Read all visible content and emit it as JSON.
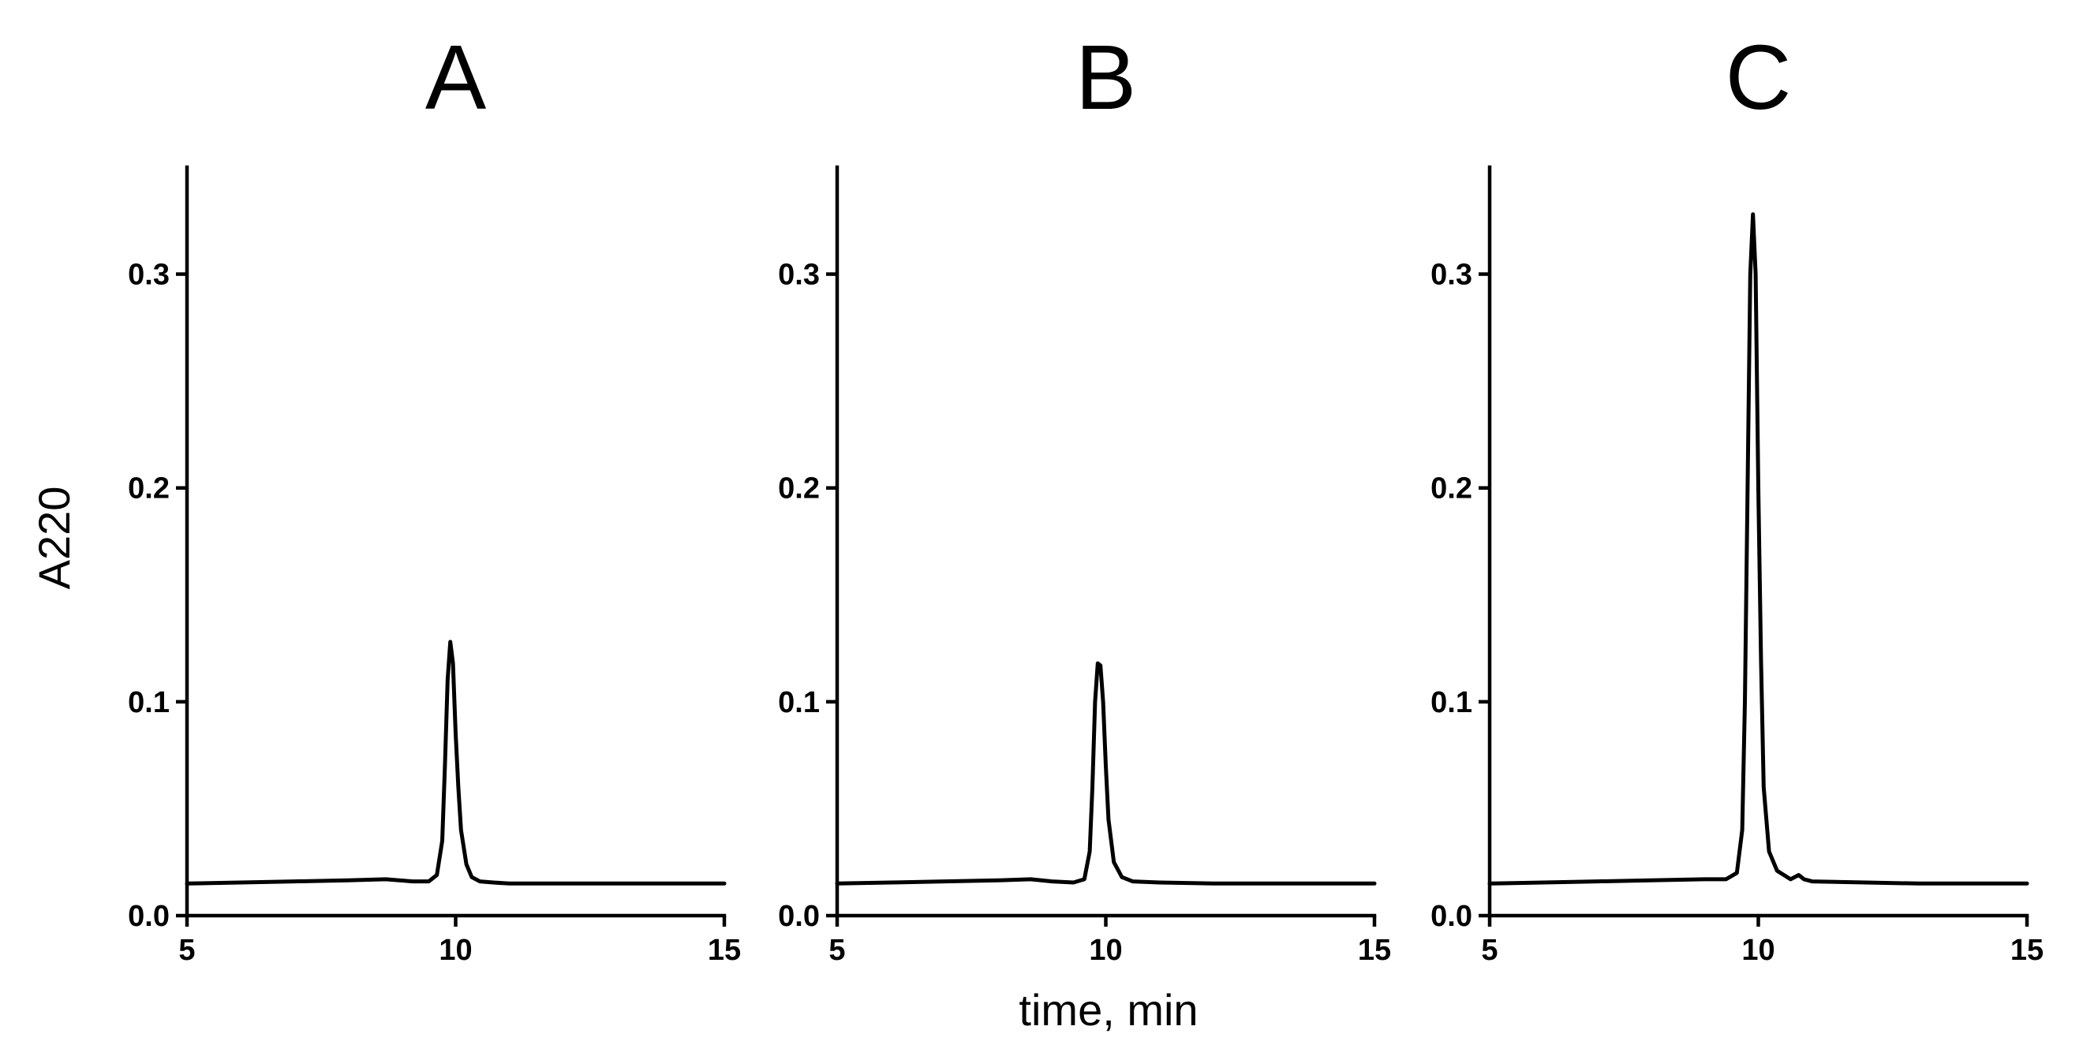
{
  "figure": {
    "ylabel": "A220",
    "xlabel": "time, min"
  },
  "chart_data": [
    {
      "type": "line",
      "title": "A",
      "xlim": [
        5,
        15
      ],
      "ylim": [
        0,
        0.35
      ],
      "xticks": [
        5,
        10,
        15
      ],
      "yticks": [
        0.0,
        0.1,
        0.2,
        0.3
      ],
      "xtick_labels": [
        "5",
        "10",
        "15"
      ],
      "ytick_labels": [
        "0.0",
        "0.1",
        "0.2",
        "0.3"
      ],
      "series": [
        {
          "x": [
            5.0,
            6.0,
            7.0,
            8.0,
            8.7,
            9.2,
            9.5,
            9.65,
            9.75,
            9.8,
            9.85,
            9.9,
            9.95,
            10.0,
            10.05,
            10.1,
            10.2,
            10.3,
            10.45,
            10.7,
            11.0,
            12.0,
            13.0,
            14.0,
            15.0
          ],
          "y": [
            0.015,
            0.0155,
            0.016,
            0.0165,
            0.017,
            0.016,
            0.016,
            0.019,
            0.035,
            0.07,
            0.11,
            0.128,
            0.118,
            0.085,
            0.06,
            0.04,
            0.024,
            0.018,
            0.016,
            0.0155,
            0.015,
            0.015,
            0.015,
            0.015,
            0.015
          ]
        }
      ]
    },
    {
      "type": "line",
      "title": "B",
      "xlim": [
        5,
        15
      ],
      "ylim": [
        0,
        0.35
      ],
      "xticks": [
        5,
        10,
        15
      ],
      "yticks": [
        0.0,
        0.1,
        0.2,
        0.3
      ],
      "xtick_labels": [
        "5",
        "10",
        "15"
      ],
      "ytick_labels": [
        "0.0",
        "0.1",
        "0.2",
        "0.3"
      ],
      "series": [
        {
          "x": [
            5.0,
            6.0,
            7.0,
            8.0,
            8.6,
            9.0,
            9.4,
            9.6,
            9.7,
            9.75,
            9.8,
            9.85,
            9.9,
            9.95,
            10.0,
            10.05,
            10.15,
            10.3,
            10.5,
            11.0,
            12.0,
            13.0,
            14.0,
            15.0
          ],
          "y": [
            0.015,
            0.0155,
            0.016,
            0.0165,
            0.017,
            0.016,
            0.0155,
            0.017,
            0.03,
            0.06,
            0.1,
            0.118,
            0.117,
            0.1,
            0.07,
            0.045,
            0.025,
            0.018,
            0.016,
            0.0155,
            0.015,
            0.015,
            0.015,
            0.015
          ]
        }
      ]
    },
    {
      "type": "line",
      "title": "C",
      "xlim": [
        5,
        15
      ],
      "ylim": [
        0,
        0.35
      ],
      "xticks": [
        5,
        10,
        15
      ],
      "yticks": [
        0.0,
        0.1,
        0.2,
        0.3
      ],
      "xtick_labels": [
        "5",
        "10",
        "15"
      ],
      "ytick_labels": [
        "0.0",
        "0.1",
        "0.2",
        "0.3"
      ],
      "series": [
        {
          "x": [
            5.0,
            6.0,
            7.0,
            8.0,
            9.0,
            9.4,
            9.6,
            9.7,
            9.75,
            9.8,
            9.85,
            9.9,
            9.95,
            10.0,
            10.05,
            10.1,
            10.2,
            10.35,
            10.6,
            10.75,
            10.85,
            11.0,
            12.0,
            13.0,
            14.0,
            15.0
          ],
          "y": [
            0.015,
            0.0155,
            0.016,
            0.0165,
            0.017,
            0.017,
            0.02,
            0.04,
            0.1,
            0.2,
            0.3,
            0.328,
            0.3,
            0.2,
            0.12,
            0.06,
            0.03,
            0.021,
            0.017,
            0.019,
            0.017,
            0.016,
            0.0155,
            0.015,
            0.015,
            0.015
          ]
        }
      ]
    }
  ]
}
